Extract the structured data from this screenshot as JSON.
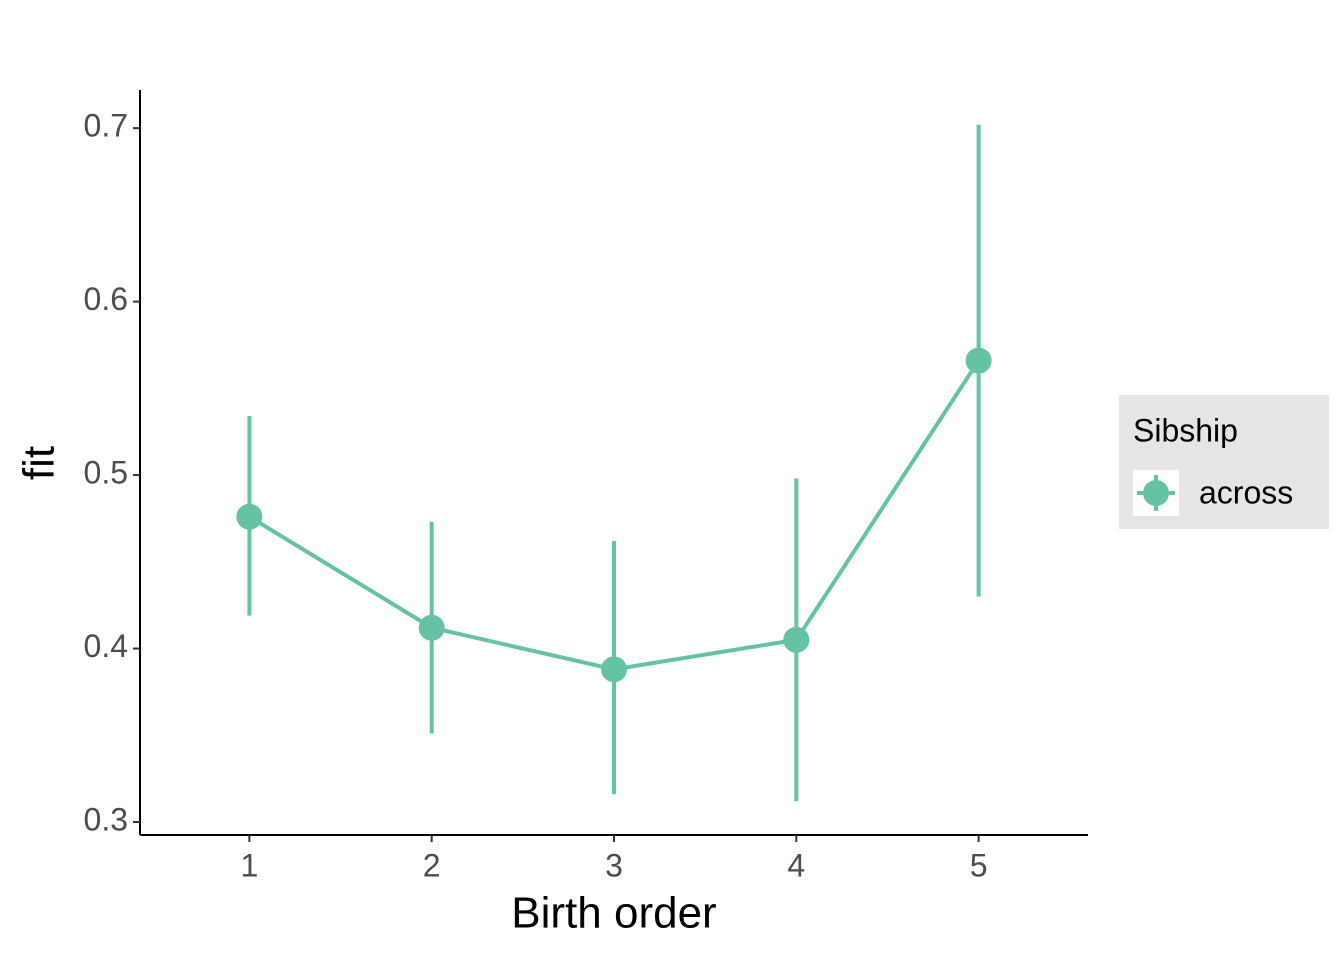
{
  "chart_data": {
    "type": "line",
    "x_label": "Birth order",
    "y_label": "fit",
    "x": [
      1,
      2,
      3,
      4,
      5
    ],
    "series": [
      {
        "name": "across",
        "color": "#66c2a5",
        "values": [
          0.476,
          0.412,
          0.388,
          0.405,
          0.566
        ],
        "lower": [
          0.419,
          0.351,
          0.316,
          0.312,
          0.43
        ],
        "upper": [
          0.534,
          0.473,
          0.462,
          0.498,
          0.702
        ]
      }
    ],
    "legend_title": "Sibship",
    "legend": "right",
    "xlim": [
      0.4,
      5.6
    ],
    "xticks": [
      1,
      2,
      3,
      4,
      5
    ],
    "ylim": [
      0.2925,
      0.722
    ],
    "yticks": [
      0.3,
      0.4,
      0.5,
      0.6,
      0.7
    ],
    "grid": false
  }
}
